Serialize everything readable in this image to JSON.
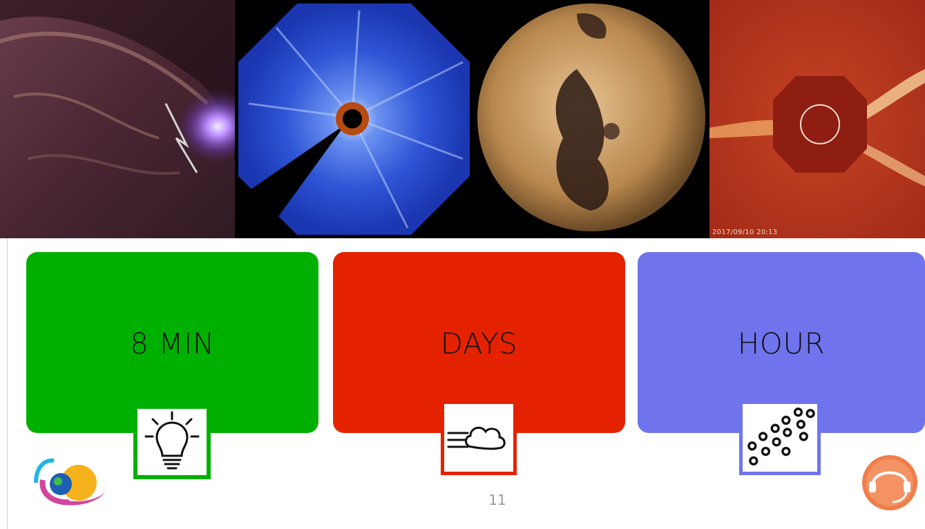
{
  "slide": {
    "page_number": "11"
  },
  "images": {
    "solar_flare": {
      "icon": "solar-flare-image"
    },
    "coronagraph_blue": {
      "icon": "coronagraph-image"
    },
    "coronal_hole_sun": {
      "icon": "sun-coronal-hole-image"
    },
    "coronagraph_red": {
      "icon": "coronagraph-red-image",
      "timestamp": "2017/09/10 20:13"
    }
  },
  "cards": [
    {
      "label": "8 MIN",
      "color": "#00b000",
      "icon": "lightbulb-icon"
    },
    {
      "label": "DAYS",
      "color": "#e42200",
      "icon": "cloud-wind-icon"
    },
    {
      "label": "HOUR",
      "color": "#6f74ec",
      "icon": "particles-icon"
    }
  ],
  "logos": {
    "left": {
      "icon": "planet-orbit-logo"
    },
    "right": {
      "icon": "headset-logo"
    }
  }
}
